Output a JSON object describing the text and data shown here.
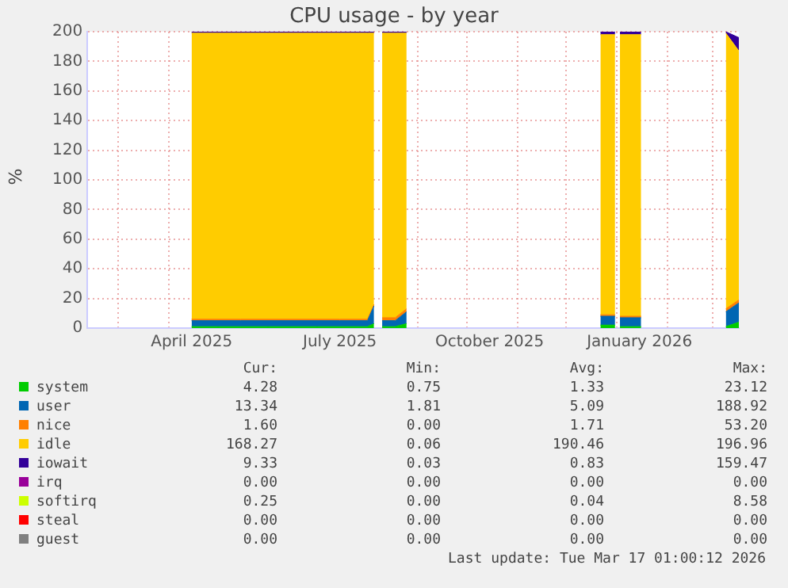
{
  "chart_data": {
    "type": "area",
    "title": "CPU usage - by year",
    "ylabel": "%",
    "stacked": true,
    "grid": true,
    "legend": "bottom",
    "marker": "none",
    "x": [
      "2025-04-15",
      "2025-05-15",
      "2025-06-15",
      "2025-07-15",
      "2025-08-01",
      "2025-08-05",
      "2025-08-08",
      "2025-08-10",
      "2025-08-18",
      "2025-08-25",
      "2025-10-01",
      "2025-12-22",
      "2025-12-31",
      "2026-01-02",
      "2026-01-03",
      "2026-01-16",
      "2026-02-01",
      "2026-03-09",
      "2026-03-17"
    ],
    "xlim": [
      "2025-02-10",
      "2026-03-17"
    ],
    "xticks": [
      {
        "value": "2025-03-01",
        "label": null
      },
      {
        "value": "2025-04-01",
        "label": null
      },
      {
        "value": "2025-04-15",
        "label": "April 2025"
      },
      {
        "value": "2025-05-01",
        "label": null
      },
      {
        "value": "2025-06-01",
        "label": null
      },
      {
        "value": "2025-07-01",
        "label": null
      },
      {
        "value": "2025-07-15",
        "label": "July 2025"
      },
      {
        "value": "2025-08-01",
        "label": null
      },
      {
        "value": "2025-09-01",
        "label": null
      },
      {
        "value": "2025-10-01",
        "label": null
      },
      {
        "value": "2025-10-15",
        "label": "October 2025"
      },
      {
        "value": "2025-11-01",
        "label": null
      },
      {
        "value": "2025-12-01",
        "label": null
      },
      {
        "value": "2026-01-01",
        "label": null
      },
      {
        "value": "2026-01-15",
        "label": "January 2026"
      },
      {
        "value": "2026-02-01",
        "label": null
      },
      {
        "value": "2026-03-01",
        "label": null
      }
    ],
    "ylim": [
      0,
      200
    ],
    "yticks": [
      0,
      20,
      40,
      60,
      80,
      100,
      120,
      140,
      160,
      180,
      200
    ],
    "series": [
      {
        "name": "system",
        "color": "#00cc00",
        "values": [
          1,
          1,
          1,
          1,
          1,
          3,
          null,
          1,
          1,
          3,
          null,
          2,
          2,
          null,
          1,
          1,
          null,
          1,
          4
        ]
      },
      {
        "name": "user",
        "color": "#0066b3",
        "values": [
          4,
          4,
          4,
          4,
          4,
          12,
          null,
          4,
          4,
          8,
          null,
          6,
          6,
          null,
          6,
          6,
          null,
          10,
          13
        ]
      },
      {
        "name": "nice",
        "color": "#ff8000",
        "values": [
          1,
          1,
          1,
          1,
          1,
          1,
          null,
          2,
          2,
          2,
          null,
          1,
          1,
          null,
          1,
          1,
          null,
          2,
          2
        ]
      },
      {
        "name": "idle",
        "color": "#ffcc00",
        "values": [
          193,
          193,
          193,
          193,
          193,
          183,
          null,
          192,
          192,
          186,
          null,
          189,
          189,
          null,
          190,
          190,
          null,
          186,
          168
        ]
      },
      {
        "name": "iowait",
        "color": "#330099",
        "values": [
          1,
          1,
          1,
          1,
          1,
          1,
          null,
          1,
          1,
          1,
          null,
          2,
          2,
          null,
          2,
          2,
          null,
          1,
          9
        ]
      },
      {
        "name": "irq",
        "color": "#990099",
        "values": [
          null,
          null,
          null,
          null,
          null,
          null,
          null,
          null,
          null,
          null,
          null,
          null,
          null,
          null,
          null,
          null,
          null,
          null,
          null
        ]
      },
      {
        "name": "softirq",
        "color": "#ccff00",
        "values": [
          null,
          null,
          null,
          null,
          null,
          null,
          null,
          null,
          null,
          null,
          null,
          null,
          null,
          null,
          null,
          null,
          null,
          null,
          null
        ]
      },
      {
        "name": "steal",
        "color": "#ff0000",
        "values": [
          null,
          null,
          null,
          null,
          null,
          null,
          null,
          null,
          null,
          null,
          null,
          null,
          null,
          null,
          null,
          null,
          null,
          null,
          null
        ]
      },
      {
        "name": "guest",
        "color": "#808080",
        "values": [
          null,
          null,
          null,
          null,
          null,
          null,
          null,
          null,
          null,
          null,
          null,
          null,
          null,
          null,
          null,
          null,
          null,
          null,
          null
        ]
      }
    ],
    "annotations": [
      "Cur:",
      "Min:",
      "Avg:",
      "Max:",
      "4.28",
      "0.75",
      "1.33",
      "23.12",
      "13.34",
      "1.81",
      "5.09",
      "188.92",
      "1.60",
      "0.00",
      "1.71",
      "53.20",
      "168.27",
      "0.06",
      "190.46",
      "196.96",
      "9.33",
      "0.03",
      "0.83",
      "159.47",
      "0.00",
      "0.00",
      "0.00",
      "0.00",
      "0.25",
      "0.00",
      "0.04",
      "8.58",
      "0.00",
      "0.00",
      "0.00",
      "0.00",
      "0.00",
      "0.00",
      "0.00",
      "0.00",
      "Last update: Tue Mar 17 01:00:12 2026"
    ]
  }
}
